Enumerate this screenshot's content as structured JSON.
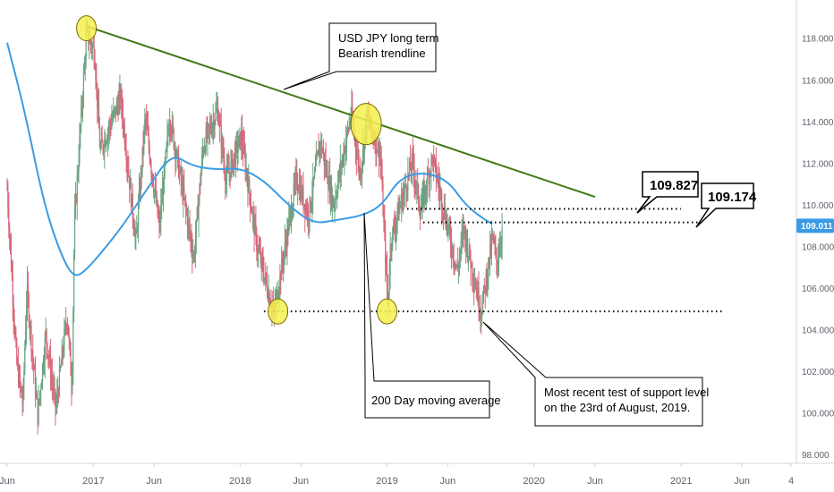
{
  "colors": {
    "background": "#ffffff",
    "axis_line": "#d1d4dc",
    "axis_text": "#5d606b",
    "up_candle": "#6ba583",
    "down_candle": "#d9667a",
    "moving_average": "#3a9be5",
    "trendline": "#3d7a16",
    "highlight_fill": "#f5f04f",
    "highlight_stroke": "#7a6a00",
    "last_price_bg": "#3a9be5",
    "dotted_line": "#000000"
  },
  "chart_data": {
    "type": "candlestick",
    "instrument": "USDJPY",
    "x_axis": {
      "start": "2016-06-01",
      "end": "2021-10-01",
      "ticks": [
        {
          "label": "Jun",
          "date": "2016-06-01"
        },
        {
          "label": "2017",
          "date": "2017-01-01"
        },
        {
          "label": "Jun",
          "date": "2017-06-01"
        },
        {
          "label": "2018",
          "date": "2018-01-01"
        },
        {
          "label": "Jun",
          "date": "2018-06-01"
        },
        {
          "label": "2019",
          "date": "2019-01-01"
        },
        {
          "label": "Jun",
          "date": "2019-06-01"
        },
        {
          "label": "2020",
          "date": "2020-01-01"
        },
        {
          "label": "Jun",
          "date": "2020-06-01"
        },
        {
          "label": "2021",
          "date": "2021-01-01"
        },
        {
          "label": "Jun",
          "date": "2021-06-01"
        },
        {
          "label": "4",
          "date": "2021-10-01"
        }
      ]
    },
    "y_axis": {
      "min": 97.6,
      "max": 119.6,
      "ticks": [
        "118.000",
        "116.000",
        "114.000",
        "112.000",
        "110.000",
        "108.000",
        "106.000",
        "104.000",
        "102.000",
        "100.000",
        "98.000"
      ]
    },
    "last_price": {
      "value": 109.011,
      "label": "109.011"
    },
    "price_path": [
      [
        "2016-06-01",
        110.8
      ],
      [
        "2016-06-24",
        102.5
      ],
      [
        "2016-07-10",
        100.4
      ],
      [
        "2016-07-20",
        106.0
      ],
      [
        "2016-08-16",
        99.9
      ],
      [
        "2016-09-05",
        103.8
      ],
      [
        "2016-09-30",
        100.2
      ],
      [
        "2016-10-28",
        104.8
      ],
      [
        "2016-11-09",
        101.2
      ],
      [
        "2016-11-15",
        109.0
      ],
      [
        "2016-12-01",
        114.0
      ],
      [
        "2016-12-15",
        118.2
      ],
      [
        "2017-01-04",
        117.4
      ],
      [
        "2017-01-18",
        112.6
      ],
      [
        "2017-02-01",
        113.3
      ],
      [
        "2017-03-10",
        115.2
      ],
      [
        "2017-04-17",
        108.2
      ],
      [
        "2017-05-10",
        114.2
      ],
      [
        "2017-06-14",
        108.9
      ],
      [
        "2017-07-10",
        114.3
      ],
      [
        "2017-09-08",
        107.5
      ],
      [
        "2017-10-01",
        112.8
      ],
      [
        "2017-11-06",
        114.6
      ],
      [
        "2017-11-27",
        111.2
      ],
      [
        "2018-01-04",
        113.3
      ],
      [
        "2018-02-12",
        108.0
      ],
      [
        "2018-03-26",
        104.8
      ],
      [
        "2018-05-21",
        111.3
      ],
      [
        "2018-06-20",
        109.5
      ],
      [
        "2018-07-19",
        113.1
      ],
      [
        "2018-08-21",
        110.0
      ],
      [
        "2018-10-04",
        114.4
      ],
      [
        "2018-10-26",
        111.5
      ],
      [
        "2018-11-12",
        114.2
      ],
      [
        "2018-12-15",
        112.5
      ],
      [
        "2019-01-03",
        105.2
      ],
      [
        "2019-01-10",
        108.3
      ],
      [
        "2019-03-05",
        112.1
      ],
      [
        "2019-03-25",
        109.7
      ],
      [
        "2019-04-24",
        112.3
      ],
      [
        "2019-06-25",
        106.8
      ],
      [
        "2019-07-10",
        108.9
      ],
      [
        "2019-08-23",
        104.9
      ],
      [
        "2019-09-20",
        108.4
      ],
      [
        "2019-10-01",
        107.2
      ],
      [
        "2019-10-15",
        109.0
      ]
    ],
    "moving_average_200": [
      [
        "2016-06-01",
        117.8
      ],
      [
        "2016-07-15",
        114.5
      ],
      [
        "2016-09-01",
        110.0
      ],
      [
        "2016-10-15",
        107.5
      ],
      [
        "2016-11-15",
        106.5
      ],
      [
        "2016-12-15",
        106.9
      ],
      [
        "2017-01-20",
        107.7
      ],
      [
        "2017-03-15",
        109.0
      ],
      [
        "2017-05-15",
        110.8
      ],
      [
        "2017-07-15",
        112.5
      ],
      [
        "2017-09-01",
        111.9
      ],
      [
        "2017-11-01",
        111.7
      ],
      [
        "2018-01-01",
        111.8
      ],
      [
        "2018-03-01",
        111.2
      ],
      [
        "2018-05-01",
        110.0
      ],
      [
        "2018-07-01",
        109.1
      ],
      [
        "2018-09-01",
        109.3
      ],
      [
        "2018-11-01",
        109.5
      ],
      [
        "2018-12-20",
        110.0
      ],
      [
        "2019-02-01",
        111.3
      ],
      [
        "2019-04-01",
        111.6
      ],
      [
        "2019-06-01",
        111.2
      ],
      [
        "2019-07-15",
        110.0
      ],
      [
        "2019-09-01",
        109.3
      ],
      [
        "2019-09-20",
        109.1
      ]
    ],
    "trendline": {
      "from": [
        "2016-12-15",
        118.6
      ],
      "to": [
        "2020-06-01",
        110.4
      ]
    },
    "highlight_circles": [
      {
        "date": "2016-12-15",
        "price": 118.5,
        "size": "small"
      },
      {
        "date": "2018-11-10",
        "price": 113.9,
        "size": "large"
      },
      {
        "date": "2018-04-05",
        "price": 104.9,
        "size": "small"
      },
      {
        "date": "2019-01-01",
        "price": 104.9,
        "size": "small"
      }
    ],
    "horizontal_levels": [
      {
        "price": 109.827,
        "from": "2019-02-20",
        "to": "2020-12-31"
      },
      {
        "price": 109.174,
        "from": "2019-04-01",
        "to": "2021-02-15"
      },
      {
        "price": 104.9,
        "from": "2018-03-01",
        "to": "2021-04-15"
      }
    ],
    "annotations": [
      {
        "id": "trendline",
        "lines": [
          "USD JPY long term",
          "Bearish trendline"
        ]
      },
      {
        "id": "ma",
        "lines": [
          "200 Day moving average"
        ]
      },
      {
        "id": "support",
        "lines": [
          "Most recent test of support level",
          "on the 23rd of August, 2019."
        ]
      }
    ],
    "level_labels": [
      "109.827",
      "109.174"
    ]
  }
}
